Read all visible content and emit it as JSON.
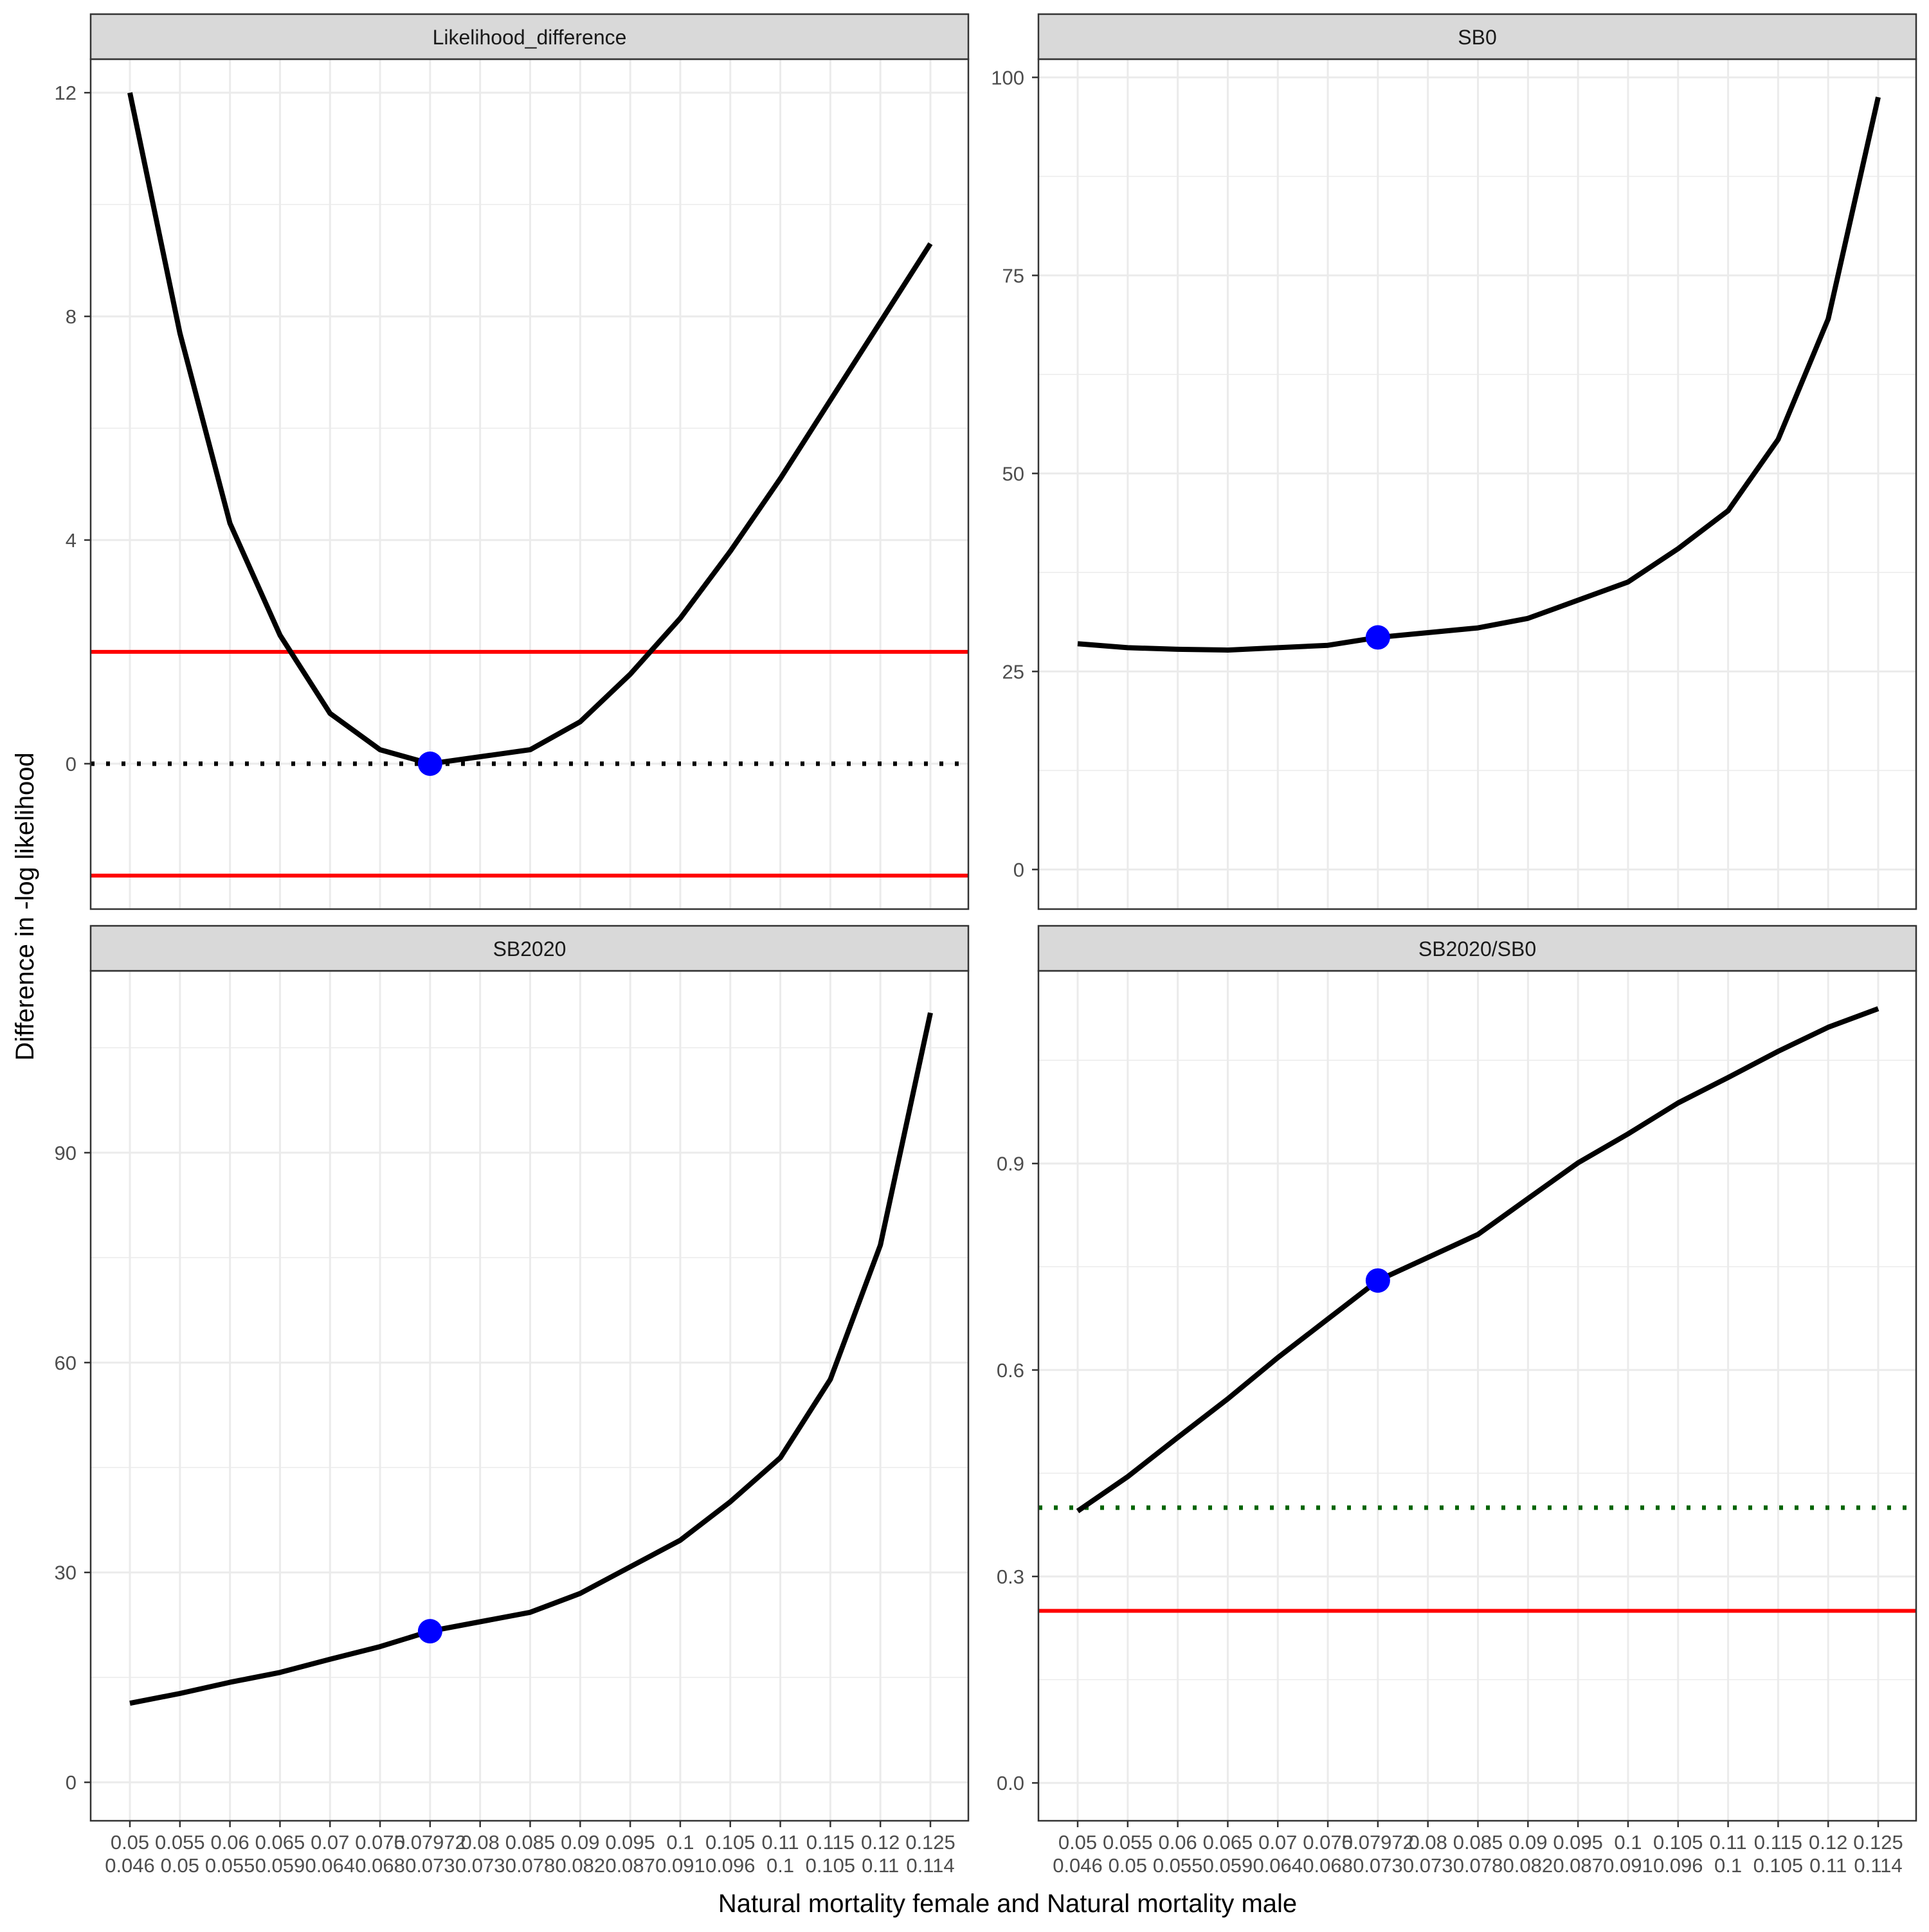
{
  "figure": {
    "ylabel": "Difference in -log likelihood",
    "xlabel": "Natural mortality female and Natural mortality male",
    "x_tick_labels": [
      [
        "0.05",
        "0.046"
      ],
      [
        "0.055",
        "0.05"
      ],
      [
        "0.06",
        "0.055"
      ],
      [
        "0.065",
        "0.059"
      ],
      [
        "0.07",
        "0.064"
      ],
      [
        "0.075",
        "0.068"
      ],
      [
        "0.07972",
        "0.073"
      ],
      [
        "0.08",
        "0.073"
      ],
      [
        "0.085",
        "0.078"
      ],
      [
        "0.09",
        "0.082"
      ],
      [
        "0.095",
        "0.087"
      ],
      [
        "0.1",
        "0.091"
      ],
      [
        "0.105",
        "0.096"
      ],
      [
        "0.11",
        "0.1"
      ],
      [
        "0.115",
        "0.105"
      ],
      [
        "0.12",
        "0.11"
      ],
      [
        "0.125",
        "0.114"
      ]
    ],
    "colors": {
      "line": "#000000",
      "point": "#0000ff",
      "threshold": "#ff0000",
      "target": "#006400",
      "zero": "#000000",
      "strip": "#d9d9d9",
      "grid": "#ebebeb"
    }
  },
  "chart_data": [
    {
      "type": "line",
      "title": "Likelihood_difference",
      "x": [
        0.05,
        0.055,
        0.06,
        0.065,
        0.07,
        0.075,
        0.07972,
        0.085,
        0.09,
        0.095,
        0.1,
        0.105,
        0.11,
        0.115,
        0.12,
        0.125
      ],
      "values": [
        12.0,
        7.7,
        4.3,
        2.3,
        0.9,
        0.25,
        0.0,
        0.25,
        0.75,
        1.6,
        2.6,
        3.8,
        5.1,
        6.5,
        7.9,
        9.3
      ],
      "mle_point": {
        "x": 0.07972,
        "y": 0.0
      },
      "yticks": [
        0,
        4,
        8,
        12
      ],
      "ylim": [
        -2.6,
        12.6
      ],
      "hlines": [
        {
          "y": 2,
          "style": "solid",
          "color": "#ff0000"
        },
        {
          "y": -2,
          "style": "solid",
          "color": "#ff0000"
        },
        {
          "y": 0,
          "style": "dotted",
          "color": "#000000"
        }
      ]
    },
    {
      "type": "line",
      "title": "SB0",
      "x": [
        0.05,
        0.055,
        0.06,
        0.065,
        0.07,
        0.075,
        0.07972,
        0.085,
        0.09,
        0.095,
        0.1,
        0.105,
        0.11,
        0.115,
        0.12,
        0.125
      ],
      "values": [
        28.5,
        28.0,
        27.8,
        27.7,
        28.0,
        28.3,
        29.3,
        30.5,
        31.7,
        34.0,
        36.3,
        40.5,
        45.3,
        54.3,
        69.5,
        97.5
      ],
      "mle_point": {
        "x": 0.07972,
        "y": 29.3
      },
      "yticks": [
        0,
        25,
        50,
        75,
        100
      ],
      "ylim": [
        -5.0,
        102.3
      ],
      "hlines": []
    },
    {
      "type": "line",
      "title": "SB2020",
      "x": [
        0.05,
        0.055,
        0.06,
        0.065,
        0.07,
        0.075,
        0.07972,
        0.085,
        0.09,
        0.095,
        0.1,
        0.105,
        0.11,
        0.115,
        0.12,
        0.125
      ],
      "values": [
        11.3,
        12.7,
        14.3,
        15.7,
        17.6,
        19.4,
        21.6,
        24.3,
        27.0,
        30.8,
        34.6,
        40.1,
        46.4,
        57.6,
        76.8,
        110.0
      ],
      "mle_point": {
        "x": 0.07972,
        "y": 21.6
      },
      "yticks": [
        0,
        30,
        60,
        90
      ],
      "ylim": [
        -5.5,
        116.0
      ],
      "hlines": []
    },
    {
      "type": "line",
      "title": "SB2020/SB0",
      "x": [
        0.05,
        0.055,
        0.06,
        0.065,
        0.07,
        0.075,
        0.07972,
        0.085,
        0.09,
        0.095,
        0.1,
        0.105,
        0.11,
        0.115,
        0.12,
        0.125
      ],
      "values": [
        0.395,
        0.445,
        0.502,
        0.558,
        0.618,
        0.674,
        0.73,
        0.797,
        0.849,
        0.901,
        0.943,
        0.988,
        1.025,
        1.063,
        1.098,
        1.125
      ],
      "mle_point": {
        "x": 0.07972,
        "y": 0.73
      },
      "yticks": [
        0.0,
        0.3,
        0.6,
        0.9
      ],
      "ylim": [
        -0.055,
        1.18
      ],
      "hlines": [
        {
          "y": 0.25,
          "style": "solid",
          "color": "#ff0000"
        },
        {
          "y": 0.4,
          "style": "dotted",
          "color": "#006400"
        }
      ]
    }
  ]
}
